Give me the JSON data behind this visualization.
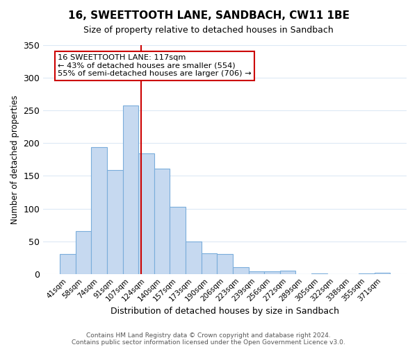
{
  "title": "16, SWEETTOOTH LANE, SANDBACH, CW11 1BE",
  "subtitle": "Size of property relative to detached houses in Sandbach",
  "xlabel": "Distribution of detached houses by size in Sandbach",
  "ylabel": "Number of detached properties",
  "bin_labels": [
    "41sqm",
    "58sqm",
    "74sqm",
    "91sqm",
    "107sqm",
    "124sqm",
    "140sqm",
    "157sqm",
    "173sqm",
    "190sqm",
    "206sqm",
    "223sqm",
    "239sqm",
    "256sqm",
    "272sqm",
    "289sqm",
    "305sqm",
    "322sqm",
    "338sqm",
    "355sqm",
    "371sqm"
  ],
  "bar_heights": [
    30,
    65,
    194,
    159,
    258,
    184,
    161,
    103,
    50,
    32,
    30,
    10,
    4,
    4,
    5,
    0,
    1,
    0,
    0,
    1,
    2
  ],
  "bar_color": "#c6d9f0",
  "bar_edge_color": "#7aaddb",
  "vline_x": 4.65,
  "vline_color": "#cc0000",
  "annotation_title": "16 SWEETTOOTH LANE: 117sqm",
  "annotation_line1": "← 43% of detached houses are smaller (554)",
  "annotation_line2": "55% of semi-detached houses are larger (706) →",
  "annotation_box_color": "#ffffff",
  "annotation_box_edge_color": "#cc0000",
  "ylim": [
    0,
    350
  ],
  "yticks": [
    0,
    50,
    100,
    150,
    200,
    250,
    300,
    350
  ],
  "footer1": "Contains HM Land Registry data © Crown copyright and database right 2024.",
  "footer2": "Contains public sector information licensed under the Open Government Licence v3.0.",
  "background_color": "#ffffff",
  "grid_color": "#dce9f5"
}
